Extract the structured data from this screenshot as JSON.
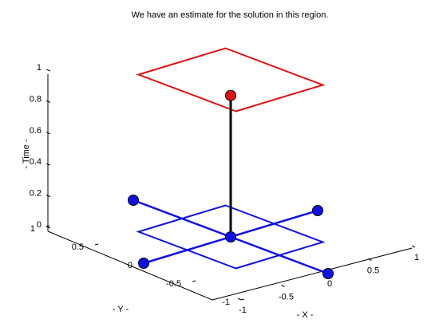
{
  "chart_data": {
    "type": "scatter",
    "projection": "3d",
    "title": "We have an estimate for the solution in this region.",
    "xlabel": "- X -",
    "ylabel": "- Y -",
    "zlabel": "- Time -",
    "xlim": [
      -1,
      1
    ],
    "ylim": [
      -1,
      1
    ],
    "zlim": [
      0,
      1
    ],
    "x_ticks": [
      "-1",
      "-0.5",
      "0",
      "0.5",
      "1"
    ],
    "y_ticks": [
      "-1",
      "-0.5",
      "0",
      "0.5",
      "1"
    ],
    "z_ticks": [
      "0",
      "0.2",
      "0.4",
      "0.6",
      "0.8",
      "1"
    ],
    "grid": false,
    "colors": {
      "blue": "#1010e6",
      "red": "#e01010",
      "black": "#000000"
    },
    "series": [
      {
        "type": "line",
        "color": "blue",
        "points": [
          [
            -1,
            0,
            0
          ],
          [
            1,
            0,
            0
          ]
        ]
      },
      {
        "type": "line",
        "color": "blue",
        "points": [
          [
            0,
            -1,
            0
          ],
          [
            0,
            1,
            0
          ]
        ]
      },
      {
        "type": "polygon",
        "color": "blue",
        "points": [
          [
            -0.5,
            -0.5,
            0
          ],
          [
            0.5,
            -0.5,
            0
          ],
          [
            0.5,
            0.5,
            0
          ],
          [
            -0.5,
            0.5,
            0
          ]
        ]
      },
      {
        "type": "polygon",
        "color": "red",
        "points": [
          [
            -0.5,
            -0.5,
            1
          ],
          [
            0.5,
            -0.5,
            1
          ],
          [
            0.5,
            0.5,
            1
          ],
          [
            -0.5,
            0.5,
            1
          ]
        ]
      },
      {
        "type": "line",
        "color": "black",
        "points": [
          [
            0,
            0,
            0
          ],
          [
            0,
            0,
            0.9
          ]
        ]
      },
      {
        "type": "scatter",
        "color": "blue",
        "points": [
          [
            -1,
            0,
            0
          ],
          [
            1,
            0,
            0
          ],
          [
            0,
            -1,
            0
          ],
          [
            0,
            1,
            0
          ],
          [
            0,
            0,
            0
          ]
        ]
      },
      {
        "type": "scatter",
        "color": "red",
        "points": [
          [
            0,
            0,
            0.9
          ]
        ]
      }
    ]
  }
}
